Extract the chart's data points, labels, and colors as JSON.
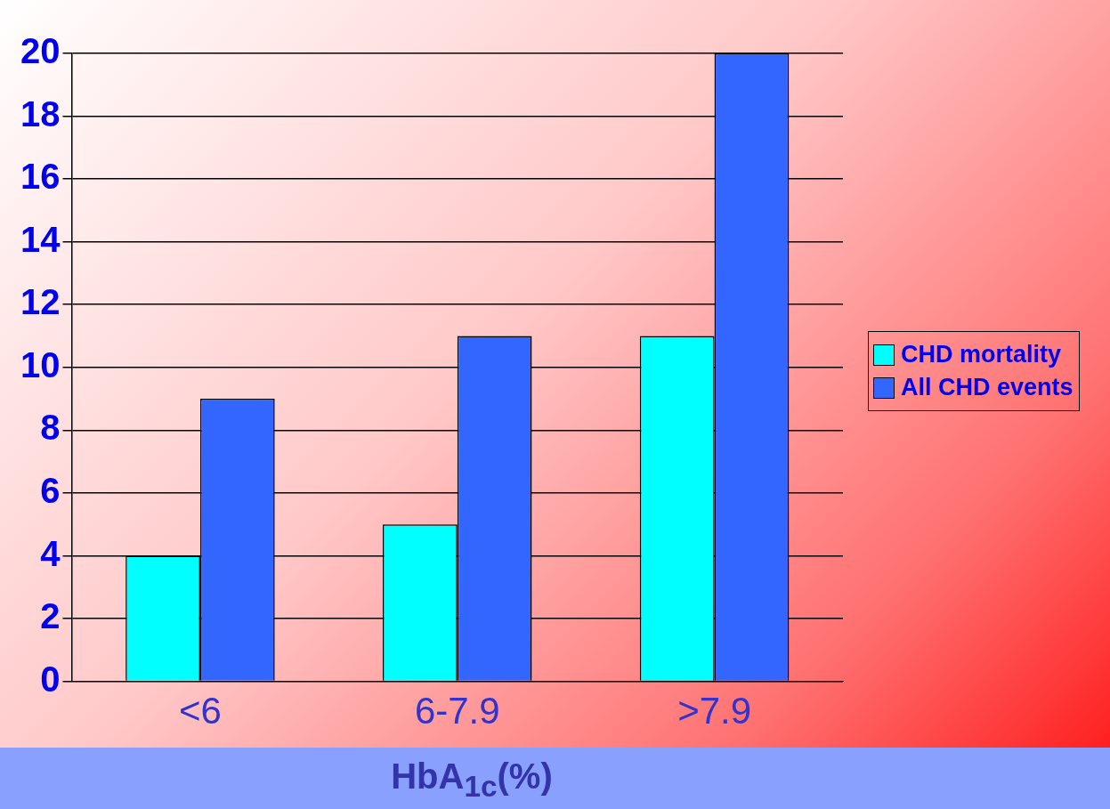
{
  "chart_data": {
    "type": "bar",
    "xlabel": "HbA$_{1c}$(%)",
    "categories": [
      "<6",
      "6-7.9",
      ">7.9"
    ],
    "series": [
      {
        "name": "CHD mortality",
        "color": "#00ffff",
        "values": [
          4,
          5,
          11
        ]
      },
      {
        "name": "All CHD events",
        "color": "#3366ff",
        "values": [
          9,
          11,
          20
        ]
      }
    ],
    "ylim": [
      0,
      20
    ],
    "yticks": [
      0,
      2,
      4,
      6,
      8,
      10,
      12,
      14,
      16,
      18,
      20
    ],
    "grid": "y",
    "legend": "right"
  }
}
